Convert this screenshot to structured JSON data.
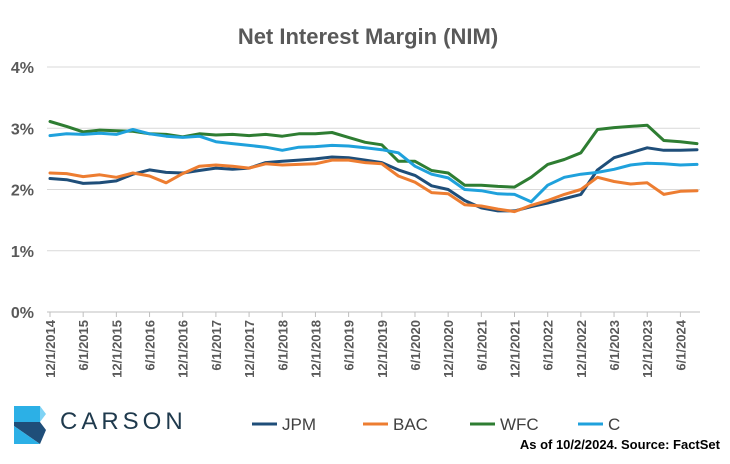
{
  "chart_data": {
    "type": "line",
    "title": "Net Interest Margin (NIM)",
    "yticks": [
      "0%",
      "1%",
      "2%",
      "3%",
      "4%"
    ],
    "ylim": [
      0,
      4
    ],
    "grid": "horizontal",
    "xtick_labels": [
      "12/1/2014",
      "6/1/2015",
      "12/1/2015",
      "6/1/2016",
      "12/1/2016",
      "6/1/2017",
      "12/1/2017",
      "6/1/2018",
      "12/1/2018",
      "6/1/2019",
      "12/1/2019",
      "6/1/2020",
      "12/1/2020",
      "6/1/2021",
      "12/1/2021",
      "6/1/2022",
      "12/1/2022",
      "6/1/2023",
      "12/1/2023",
      "6/1/2024"
    ],
    "x": [
      "12/1/2014",
      "3/1/2015",
      "6/1/2015",
      "9/1/2015",
      "12/1/2015",
      "3/1/2016",
      "6/1/2016",
      "9/1/2016",
      "12/1/2016",
      "3/1/2017",
      "6/1/2017",
      "9/1/2017",
      "12/1/2017",
      "3/1/2018",
      "6/1/2018",
      "9/1/2018",
      "12/1/2018",
      "3/1/2019",
      "6/1/2019",
      "9/1/2019",
      "12/1/2019",
      "3/1/2020",
      "6/1/2020",
      "9/1/2020",
      "12/1/2020",
      "3/1/2021",
      "6/1/2021",
      "9/1/2021",
      "12/1/2021",
      "3/1/2022",
      "6/1/2022",
      "9/1/2022",
      "12/1/2022",
      "3/1/2023",
      "6/1/2023",
      "9/1/2023",
      "12/1/2023",
      "3/1/2024",
      "6/1/2024",
      "9/1/2024"
    ],
    "legend_position": "bottom",
    "series": [
      {
        "name": "JPM",
        "color": "#1f4e79",
        "values": [
          2.18,
          2.16,
          2.1,
          2.11,
          2.14,
          2.25,
          2.32,
          2.28,
          2.27,
          2.31,
          2.35,
          2.33,
          2.35,
          2.44,
          2.46,
          2.48,
          2.5,
          2.53,
          2.52,
          2.48,
          2.44,
          2.32,
          2.23,
          2.06,
          2.0,
          1.82,
          1.7,
          1.65,
          1.65,
          1.72,
          1.78,
          1.85,
          1.92,
          2.32,
          2.52,
          2.6,
          2.68,
          2.64,
          2.64,
          2.65
        ]
      },
      {
        "name": "BAC",
        "color": "#ed7d31",
        "values": [
          2.27,
          2.26,
          2.21,
          2.24,
          2.2,
          2.27,
          2.22,
          2.11,
          2.26,
          2.38,
          2.4,
          2.38,
          2.35,
          2.42,
          2.4,
          2.41,
          2.42,
          2.48,
          2.48,
          2.44,
          2.42,
          2.22,
          2.12,
          1.95,
          1.93,
          1.75,
          1.73,
          1.68,
          1.64,
          1.74,
          1.82,
          1.92,
          2.0,
          2.2,
          2.13,
          2.09,
          2.11,
          1.92,
          1.97,
          1.98
        ]
      },
      {
        "name": "WFC",
        "color": "#2e7d32",
        "values": [
          3.11,
          3.03,
          2.94,
          2.97,
          2.96,
          2.95,
          2.91,
          2.9,
          2.86,
          2.91,
          2.89,
          2.9,
          2.88,
          2.9,
          2.87,
          2.91,
          2.91,
          2.93,
          2.85,
          2.77,
          2.73,
          2.46,
          2.46,
          2.31,
          2.27,
          2.07,
          2.07,
          2.05,
          2.04,
          2.2,
          2.41,
          2.49,
          2.6,
          2.98,
          3.01,
          3.03,
          3.05,
          2.8,
          2.78,
          2.75
        ]
      },
      {
        "name": "C",
        "color": "#1fa1dc",
        "values": [
          2.88,
          2.91,
          2.9,
          2.92,
          2.9,
          2.98,
          2.91,
          2.87,
          2.85,
          2.87,
          2.78,
          2.75,
          2.72,
          2.69,
          2.64,
          2.69,
          2.7,
          2.72,
          2.71,
          2.68,
          2.65,
          2.6,
          2.38,
          2.25,
          2.19,
          2.0,
          1.98,
          1.93,
          1.92,
          1.8,
          2.07,
          2.2,
          2.25,
          2.28,
          2.33,
          2.4,
          2.43,
          2.42,
          2.4,
          2.41
        ]
      }
    ]
  },
  "logo": {
    "text": "CARSON",
    "colors": [
      "#2cb0e6",
      "#7fd3f5",
      "#1f4e79"
    ]
  },
  "source_note": "As of 10/2/2024. Source: FactSet"
}
